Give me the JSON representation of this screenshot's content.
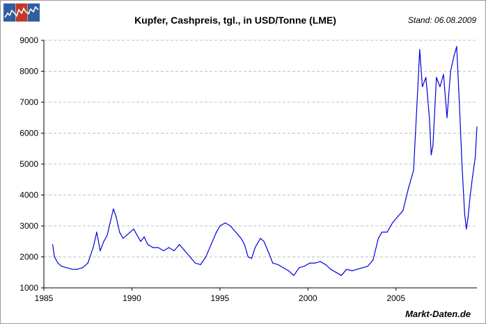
{
  "header": {
    "title": "Kupfer, Cashpreis, tgl., in USD/Tonne (LME)",
    "stand": "Stand: 06.08.2009"
  },
  "footer": {
    "brand": "Markt-Daten.de"
  },
  "colors": {
    "line": "#0000dd",
    "grid": "#c0c0c0",
    "logo_left": "#2f5f9e",
    "logo_mid": "#c0392b",
    "logo_right": "#2f5f9e"
  },
  "chart_data": {
    "type": "line",
    "title": "Kupfer, Cashpreis, tgl., in USD/Tonne (LME)",
    "xlabel": "",
    "ylabel": "",
    "xlim": [
      1985,
      2009.6
    ],
    "ylim": [
      1000,
      9000
    ],
    "grid": true,
    "legend": "none",
    "x_ticks": [
      1985,
      1990,
      1995,
      2000,
      2005
    ],
    "y_ticks": [
      1000,
      2000,
      3000,
      4000,
      5000,
      6000,
      7000,
      8000,
      9000
    ],
    "series": [
      {
        "x": [
          1985.5,
          1985.6,
          1985.8,
          1986.0,
          1986.3,
          1986.6,
          1986.9,
          1987.2,
          1987.5,
          1987.8,
          1988.0,
          1988.2,
          1988.4,
          1988.6,
          1988.8,
          1988.95,
          1989.1,
          1989.3,
          1989.5,
          1989.7,
          1989.9,
          1990.1,
          1990.3,
          1990.5,
          1990.7,
          1990.9,
          1991.2,
          1991.5,
          1991.8,
          1992.1,
          1992.4,
          1992.7,
          1993.0,
          1993.3,
          1993.6,
          1993.9,
          1994.2,
          1994.5,
          1994.8,
          1995.0,
          1995.3,
          1995.6,
          1995.9,
          1996.2,
          1996.4,
          1996.6,
          1996.8,
          1997.0,
          1997.3,
          1997.5,
          1997.8,
          1998.0,
          1998.3,
          1998.6,
          1998.9,
          1999.2,
          1999.5,
          1999.8,
          2000.1,
          2000.4,
          2000.7,
          2001.0,
          2001.3,
          2001.6,
          2001.9,
          2002.2,
          2002.5,
          2002.8,
          2003.1,
          2003.4,
          2003.7,
          2004.0,
          2004.2,
          2004.5,
          2004.8,
          2005.1,
          2005.4,
          2005.7,
          2006.0,
          2006.2,
          2006.35,
          2006.5,
          2006.7,
          2006.9,
          2007.0,
          2007.1,
          2007.3,
          2007.5,
          2007.7,
          2007.9,
          2008.1,
          2008.3,
          2008.45,
          2008.6,
          2008.75,
          2008.9,
          2009.0,
          2009.1,
          2009.2,
          2009.35,
          2009.5,
          2009.6
        ],
        "y": [
          2400,
          2000,
          1800,
          1700,
          1650,
          1600,
          1600,
          1650,
          1800,
          2300,
          2800,
          2200,
          2500,
          2700,
          3200,
          3550,
          3300,
          2800,
          2600,
          2700,
          2800,
          2900,
          2700,
          2500,
          2650,
          2400,
          2300,
          2300,
          2200,
          2300,
          2200,
          2400,
          2200,
          2000,
          1800,
          1750,
          2000,
          2400,
          2800,
          3000,
          3100,
          3000,
          2800,
          2600,
          2400,
          2000,
          1950,
          2300,
          2600,
          2500,
          2100,
          1800,
          1750,
          1650,
          1550,
          1400,
          1650,
          1700,
          1800,
          1800,
          1850,
          1750,
          1600,
          1500,
          1400,
          1600,
          1550,
          1600,
          1650,
          1700,
          1900,
          2600,
          2800,
          2800,
          3100,
          3300,
          3500,
          4200,
          4800,
          7000,
          8700,
          7500,
          7800,
          6500,
          5300,
          5600,
          7800,
          7500,
          7900,
          6500,
          8000,
          8500,
          8800,
          7000,
          5000,
          3400,
          2900,
          3300,
          3900,
          4600,
          5200,
          6200
        ]
      }
    ]
  }
}
